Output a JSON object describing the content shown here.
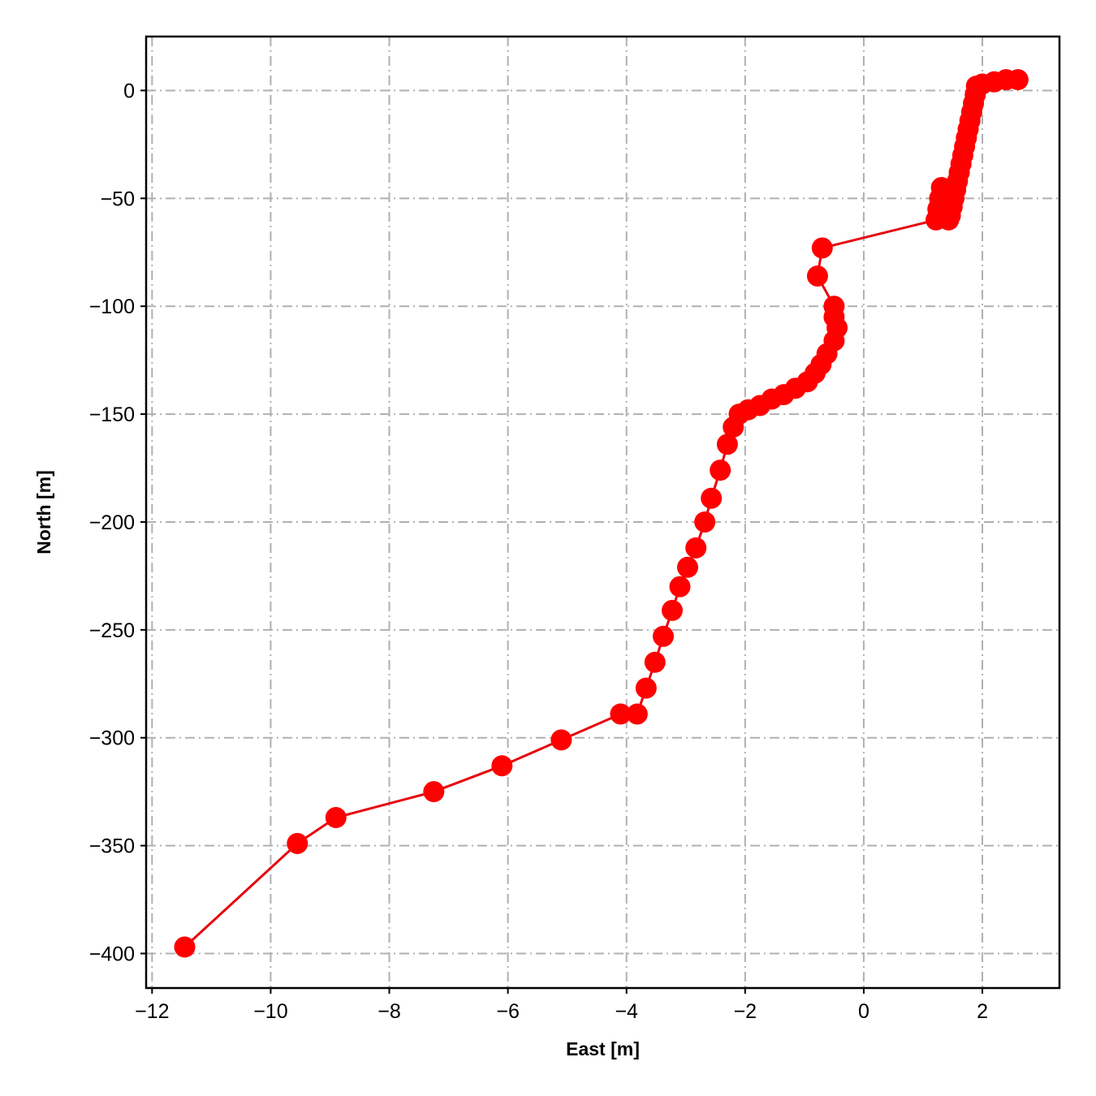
{
  "chart_data": {
    "type": "line",
    "title": "",
    "xlabel": "East [m]",
    "ylabel": "North [m]",
    "xlim": [
      -12.1,
      3.3
    ],
    "ylim": [
      -416,
      25
    ],
    "xticks": [
      -12,
      -10,
      -8,
      -6,
      -4,
      -2,
      0,
      2
    ],
    "yticks": [
      0,
      -50,
      -100,
      -150,
      -200,
      -250,
      -300,
      -350,
      -400
    ],
    "xtick_labels": [
      "−12",
      "−10",
      "−8",
      "−6",
      "−4",
      "−2",
      "0",
      "2"
    ],
    "ytick_labels": [
      "0",
      "−50",
      "−100",
      "−150",
      "−200",
      "−250",
      "−300",
      "−350",
      "−400"
    ],
    "grid": true,
    "colors": {
      "series": "#ff0000",
      "line": "#e8000b",
      "grid": "#b0b0b0"
    },
    "series": [
      {
        "marker": "circle",
        "x": [
          2.6,
          2.4,
          2.2,
          2.0,
          1.9,
          1.88,
          1.85,
          1.82,
          1.79,
          1.76,
          1.73,
          1.7,
          1.67,
          1.64,
          1.61,
          1.58,
          1.55,
          1.52,
          1.49,
          1.46,
          1.43,
          1.4,
          1.37,
          1.34,
          1.31,
          1.28,
          1.25,
          1.22,
          -0.7,
          -0.78,
          -0.5,
          -0.5,
          -0.45,
          -0.5,
          -0.62,
          -0.72,
          -0.82,
          -0.95,
          -1.15,
          -1.35,
          -1.55,
          -1.75,
          -1.95,
          -2.1,
          -2.2,
          -2.3,
          -2.42,
          -2.57,
          -2.68,
          -2.83,
          -2.97,
          -3.1,
          -3.23,
          -3.38,
          -3.52,
          -3.67,
          -3.82,
          -4.1,
          -5.1,
          -6.1,
          -7.25,
          -8.9,
          -9.55,
          -11.45
        ],
        "y": [
          5,
          5,
          4,
          3,
          2,
          -2,
          -6,
          -10,
          -14,
          -18,
          -22,
          -26,
          -30,
          -34,
          -38,
          -42,
          -46,
          -50,
          -54,
          -58,
          -60,
          -55,
          -52,
          -48,
          -45,
          -50,
          -55,
          -60,
          -73,
          -86,
          -100,
          -105,
          -110,
          -116,
          -122,
          -127,
          -131,
          -135,
          -138,
          -141,
          -143,
          -146,
          -148,
          -150,
          -156,
          -164,
          -176,
          -189,
          -200,
          -212,
          -221,
          -230,
          -241,
          -253,
          -265,
          -277,
          -289,
          -289,
          -301,
          -313,
          -325,
          -337,
          -349,
          -397
        ]
      }
    ]
  }
}
